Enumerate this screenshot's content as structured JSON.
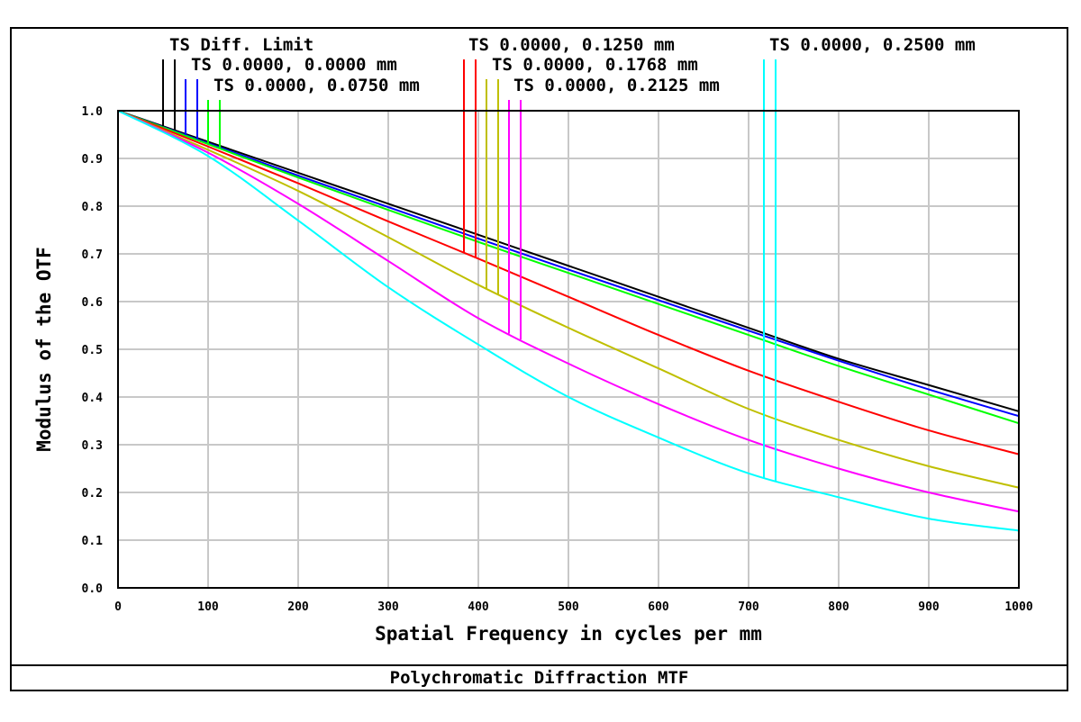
{
  "caption": "Polychromatic Diffraction MTF",
  "chart_data": {
    "type": "line",
    "title": "",
    "xlabel": "Spatial Frequency in cycles per mm",
    "ylabel": "Modulus of the OTF",
    "xlim": [
      0,
      1000
    ],
    "ylim": [
      0,
      1
    ],
    "xticks": [
      "0",
      "100",
      "200",
      "300",
      "400",
      "500",
      "600",
      "700",
      "800",
      "900",
      "1000"
    ],
    "yticks": [
      "0.0",
      "0.1",
      "0.2",
      "0.3",
      "0.4",
      "0.5",
      "0.6",
      "0.7",
      "0.8",
      "0.9",
      "1.0"
    ],
    "grid": true,
    "legend_placement": "top",
    "x": [
      0,
      100,
      200,
      300,
      400,
      500,
      600,
      700,
      800,
      900,
      1000
    ],
    "series": [
      {
        "name": "TS Diff. Limit",
        "color": "#000000",
        "values": [
          1.0,
          0.935,
          0.87,
          0.805,
          0.74,
          0.675,
          0.61,
          0.545,
          0.48,
          0.425,
          0.37
        ]
      },
      {
        "name": "TS 0.0000, 0.0000 mm",
        "color": "#0000ff",
        "values": [
          1.0,
          0.932,
          0.864,
          0.798,
          0.732,
          0.667,
          0.603,
          0.539,
          0.476,
          0.416,
          0.36
        ]
      },
      {
        "name": "TS 0.0000, 0.0750 mm",
        "color": "#00ff00",
        "values": [
          1.0,
          0.93,
          0.86,
          0.792,
          0.725,
          0.66,
          0.595,
          0.53,
          0.465,
          0.405,
          0.345
        ]
      },
      {
        "name": "TS 0.0000, 0.1250 mm",
        "color": "#ff0000",
        "values": [
          1.0,
          0.925,
          0.848,
          0.768,
          0.69,
          0.61,
          0.53,
          0.455,
          0.39,
          0.33,
          0.28
        ]
      },
      {
        "name": "TS 0.0000, 0.1768 mm",
        "color": "#bfbf00",
        "values": [
          1.0,
          0.918,
          0.832,
          0.735,
          0.635,
          0.545,
          0.46,
          0.375,
          0.31,
          0.255,
          0.21
        ]
      },
      {
        "name": "TS 0.0000, 0.2125 mm",
        "color": "#ff00ff",
        "values": [
          1.0,
          0.912,
          0.805,
          0.685,
          0.565,
          0.47,
          0.385,
          0.31,
          0.25,
          0.2,
          0.16
        ]
      },
      {
        "name": "TS 0.0000, 0.2500 mm",
        "color": "#00ffff",
        "values": [
          1.0,
          0.905,
          0.77,
          0.63,
          0.51,
          0.4,
          0.315,
          0.24,
          0.19,
          0.145,
          0.12
        ]
      }
    ]
  }
}
